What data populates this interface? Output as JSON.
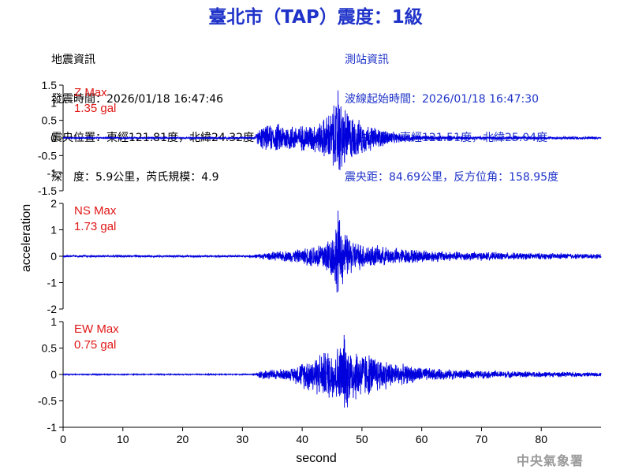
{
  "title": "臺北市（TAP）震度：1級",
  "quake_info": {
    "heading": "地震資訊",
    "origin_time": "發震時間：2026/01/18 16:47:46",
    "epicenter": "震央位置：東經121.81度，北緯24.32度",
    "depth_magnitude": "深　度：5.9公里，芮氏規模：4.9"
  },
  "station_info": {
    "heading": "測站資訊",
    "wave_start": "波線起始時間：2026/01/18 16:47:30",
    "station_location": "測站位置：東經121.51度，北緯25.04度",
    "distance_azimuth": "震央距：84.69公里，反方位角：158.95度"
  },
  "watermark": "中央氣象署",
  "colors": {
    "title": "#1f33c9",
    "trace": "#0000dd",
    "peak_label": "#e01616",
    "station_info": "#1f33c9"
  },
  "chart_data": {
    "type": "line",
    "xlabel": "second",
    "ylabel": "acceleration",
    "xlim": [
      0,
      90
    ],
    "x_ticks": [
      0,
      10,
      20,
      30,
      40,
      50,
      60,
      70,
      80
    ],
    "x_tick_labels": [
      "0",
      "10",
      "20",
      "30",
      "40",
      "50",
      "60",
      "70",
      "80"
    ],
    "panels": [
      {
        "name": "Z",
        "peak_label": "Z Max",
        "peak_value": "1.35 gal",
        "ylim": [
          -1.5,
          1.5
        ],
        "y_ticks": [
          1.5,
          1,
          0.5,
          0,
          -0.5,
          -1,
          -1.5
        ],
        "y_tick_labels": [
          "1.5",
          "1",
          "0.5",
          "0",
          "-0.5",
          "-1",
          "-1.5"
        ],
        "envelope": [
          [
            0,
            0.03
          ],
          [
            32,
            0.03
          ],
          [
            33,
            0.35
          ],
          [
            36,
            0.45
          ],
          [
            40,
            0.4
          ],
          [
            43,
            0.5
          ],
          [
            45,
            0.9
          ],
          [
            46,
            1.35
          ],
          [
            47,
            1.0
          ],
          [
            49,
            0.6
          ],
          [
            52,
            0.35
          ],
          [
            56,
            0.15
          ],
          [
            60,
            0.08
          ],
          [
            70,
            0.05
          ],
          [
            90,
            0.04
          ]
        ]
      },
      {
        "name": "NS",
        "peak_label": "NS Max",
        "peak_value": "1.73 gal",
        "ylim": [
          -2,
          2
        ],
        "y_ticks": [
          2,
          1,
          0,
          -1,
          -2
        ],
        "y_tick_labels": [
          "2",
          "1",
          "0",
          "-1",
          "-2"
        ],
        "envelope": [
          [
            0,
            0.04
          ],
          [
            31,
            0.04
          ],
          [
            34,
            0.15
          ],
          [
            40,
            0.3
          ],
          [
            43,
            0.6
          ],
          [
            45,
            0.9
          ],
          [
            46,
            1.73
          ],
          [
            47,
            1.0
          ],
          [
            49,
            0.6
          ],
          [
            53,
            0.4
          ],
          [
            58,
            0.3
          ],
          [
            65,
            0.2
          ],
          [
            75,
            0.15
          ],
          [
            90,
            0.1
          ]
        ]
      },
      {
        "name": "EW",
        "peak_label": "EW Max",
        "peak_value": "0.75 gal",
        "ylim": [
          -1,
          1
        ],
        "y_ticks": [
          1,
          0.5,
          0,
          -0.5,
          -1
        ],
        "y_tick_labels": [
          "1",
          "0.5",
          "0",
          "-0.5",
          "-1"
        ],
        "envelope": [
          [
            0,
            0.01
          ],
          [
            32,
            0.01
          ],
          [
            33,
            0.1
          ],
          [
            38,
            0.12
          ],
          [
            41,
            0.35
          ],
          [
            44,
            0.5
          ],
          [
            46,
            0.6
          ],
          [
            47,
            0.75
          ],
          [
            49,
            0.55
          ],
          [
            52,
            0.4
          ],
          [
            56,
            0.22
          ],
          [
            62,
            0.12
          ],
          [
            70,
            0.08
          ],
          [
            90,
            0.04
          ]
        ]
      }
    ]
  }
}
